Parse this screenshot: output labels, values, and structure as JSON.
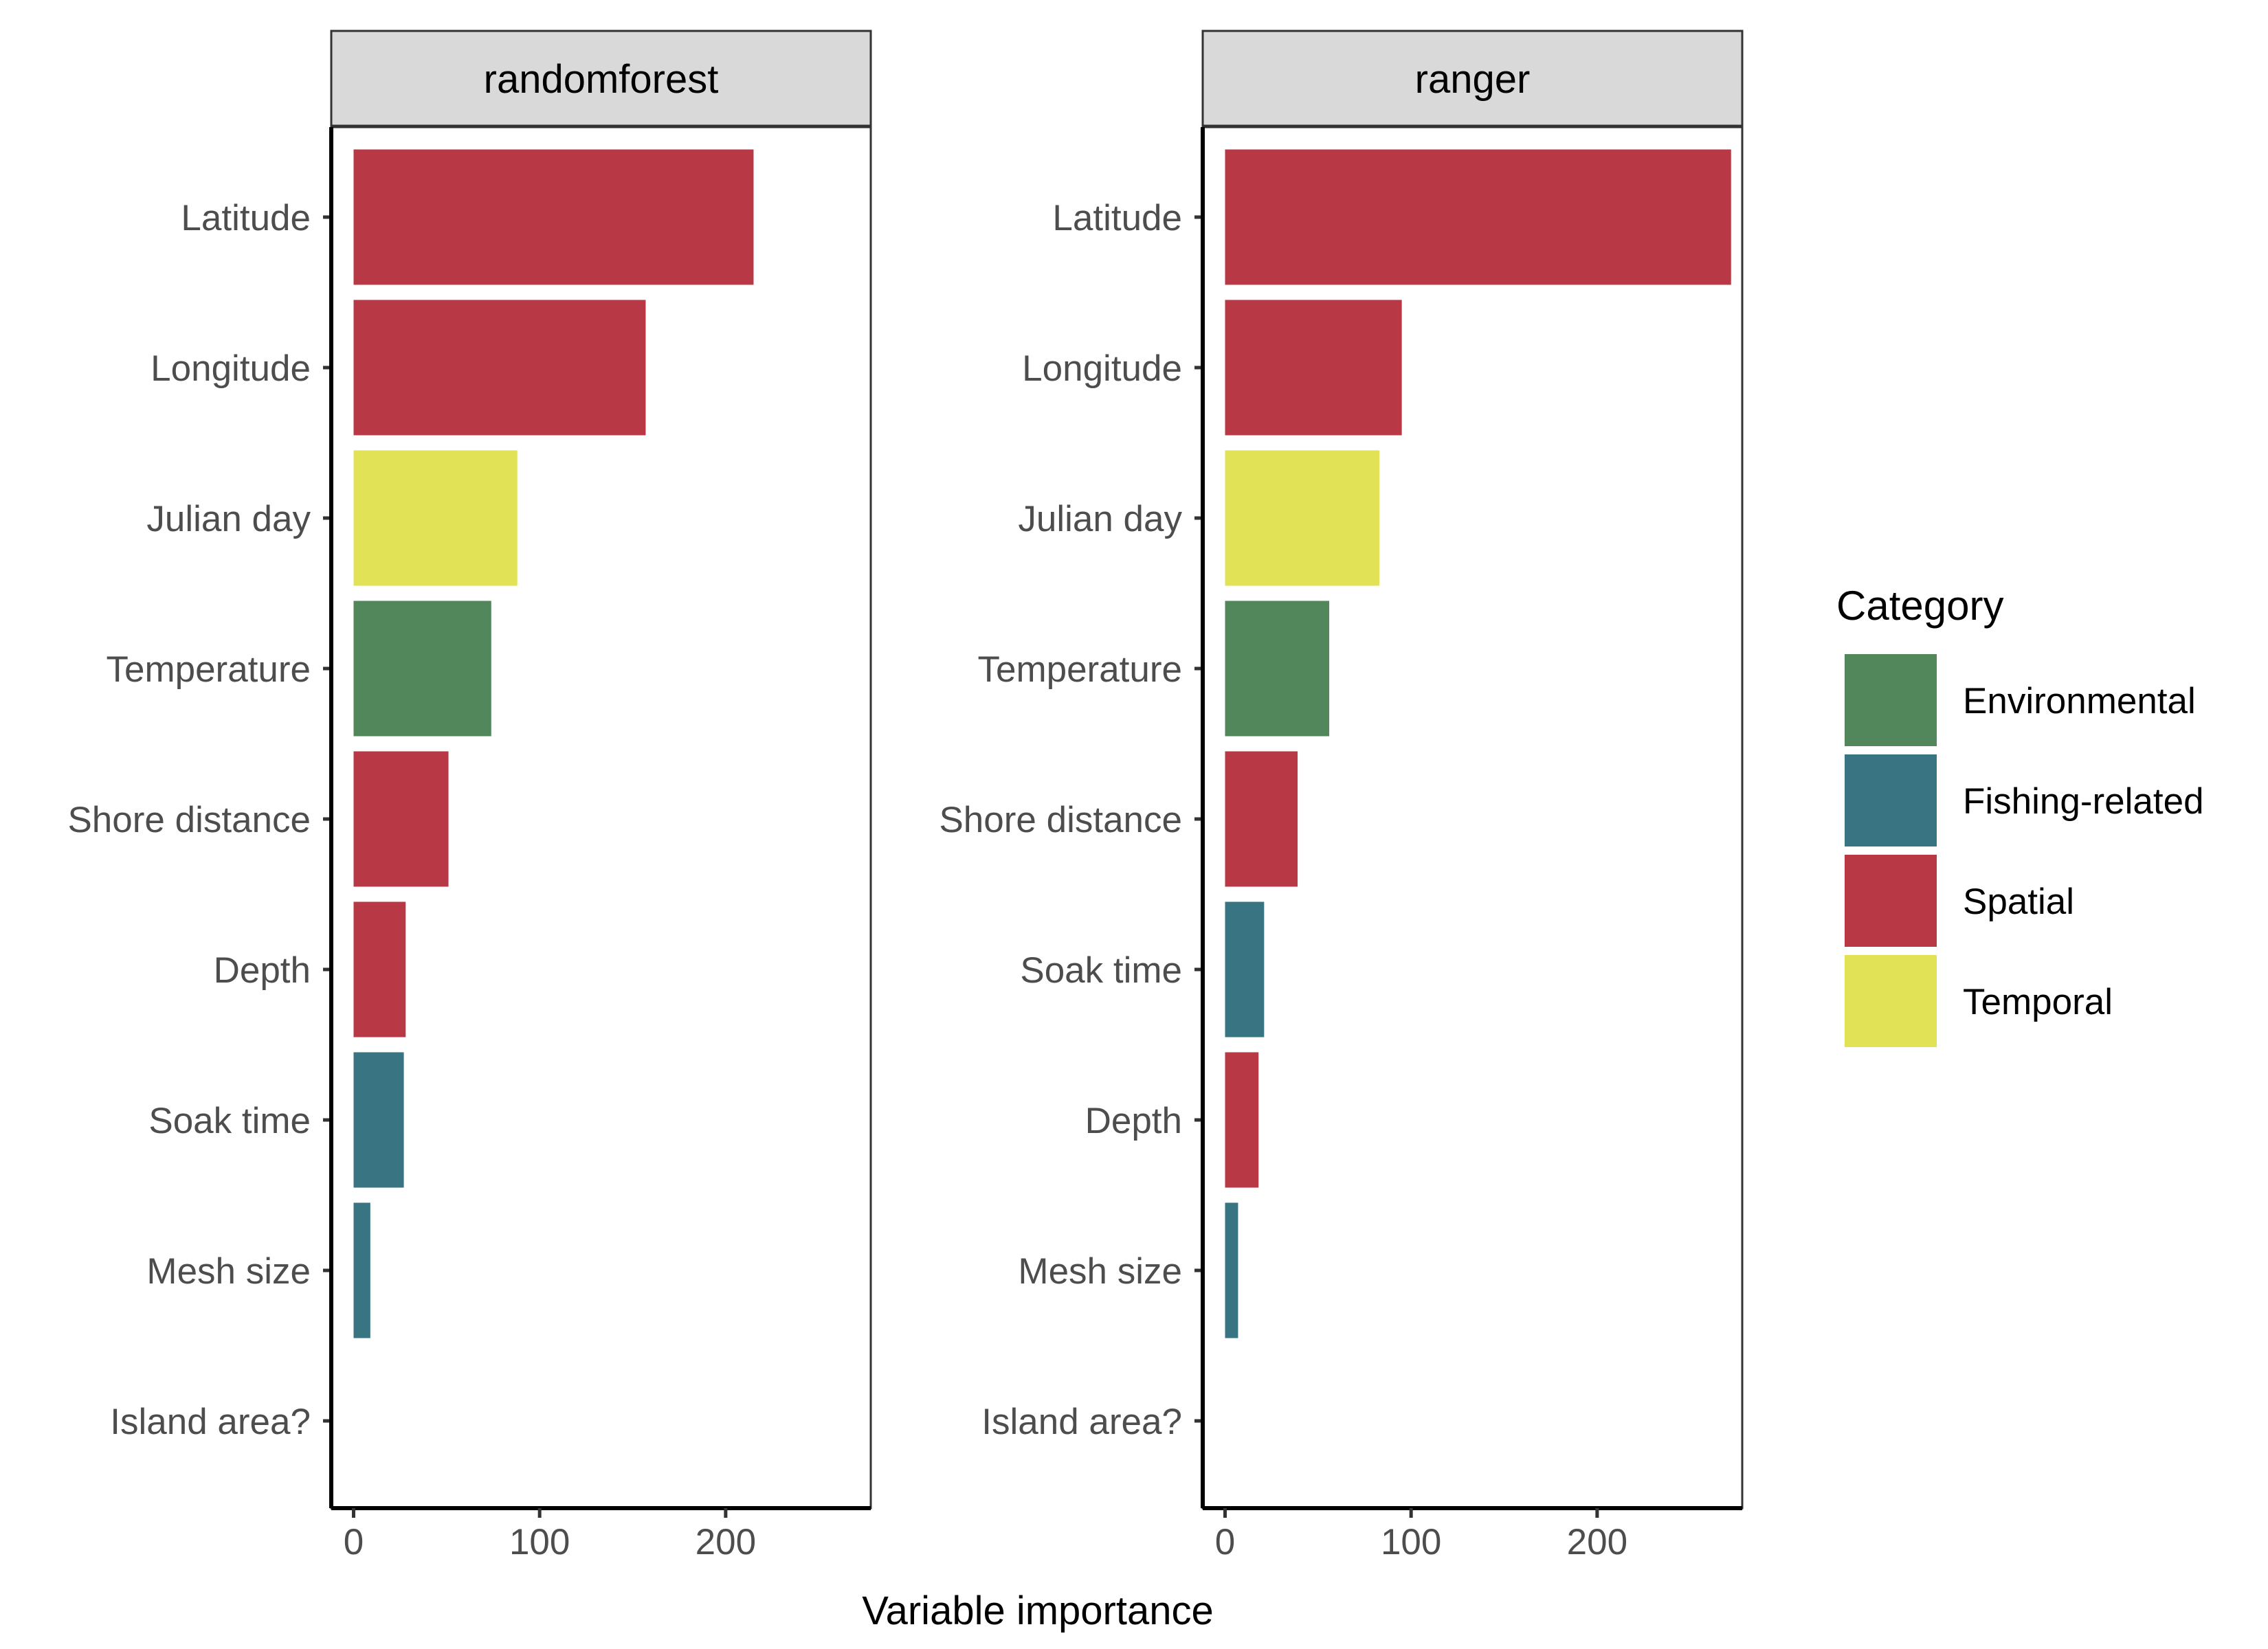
{
  "chart_data": {
    "type": "bar",
    "orientation": "horizontal",
    "xlabel": "Variable importance",
    "xlim": [
      -12,
      278
    ],
    "xticks": [
      0,
      100,
      200
    ],
    "grid": false,
    "colors": {
      "Environmental": "#52875C",
      "Fishing-related": "#387482",
      "Spatial": "#B93845",
      "Temporal": "#E2E256"
    },
    "legend": {
      "title": "Category",
      "position": "right",
      "entries": [
        "Environmental",
        "Fishing-related",
        "Spatial",
        "Temporal"
      ]
    },
    "panels": [
      {
        "name": "randomforest",
        "bars": [
          {
            "label": "Latitude",
            "value": 215,
            "category": "Spatial"
          },
          {
            "label": "Longitude",
            "value": 157,
            "category": "Spatial"
          },
          {
            "label": "Julian day",
            "value": 88,
            "category": "Temporal"
          },
          {
            "label": "Temperature",
            "value": 74,
            "category": "Environmental"
          },
          {
            "label": "Shore distance",
            "value": 51,
            "category": "Spatial"
          },
          {
            "label": "Depth",
            "value": 28,
            "category": "Spatial"
          },
          {
            "label": "Soak time",
            "value": 27,
            "category": "Fishing-related"
          },
          {
            "label": "Mesh size",
            "value": 9,
            "category": "Fishing-related"
          },
          {
            "label": "Island area?",
            "value": 0,
            "category": "Spatial"
          }
        ]
      },
      {
        "name": "ranger",
        "bars": [
          {
            "label": "Latitude",
            "value": 272,
            "category": "Spatial"
          },
          {
            "label": "Longitude",
            "value": 95,
            "category": "Spatial"
          },
          {
            "label": "Julian day",
            "value": 83,
            "category": "Temporal"
          },
          {
            "label": "Temperature",
            "value": 56,
            "category": "Environmental"
          },
          {
            "label": "Shore distance",
            "value": 39,
            "category": "Spatial"
          },
          {
            "label": "Soak time",
            "value": 21,
            "category": "Fishing-related"
          },
          {
            "label": "Depth",
            "value": 18,
            "category": "Spatial"
          },
          {
            "label": "Mesh size",
            "value": 7,
            "category": "Fishing-related"
          },
          {
            "label": "Island area?",
            "value": 0,
            "category": "Spatial"
          }
        ]
      }
    ]
  }
}
